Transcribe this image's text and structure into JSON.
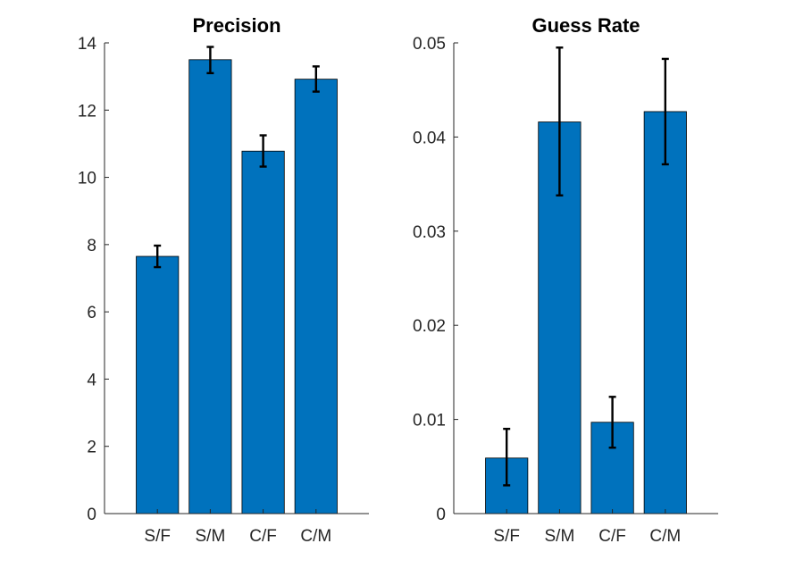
{
  "chart_data": [
    {
      "type": "bar",
      "title": "Precision",
      "categories": [
        "S/F",
        "S/M",
        "C/F",
        "C/M"
      ],
      "values": [
        7.65,
        13.5,
        10.78,
        12.92
      ],
      "error_low": [
        7.33,
        13.1,
        10.32,
        12.55
      ],
      "error_high": [
        7.97,
        13.88,
        11.25,
        13.3
      ],
      "ylim": [
        0,
        14
      ],
      "yticks": [
        0,
        2,
        4,
        6,
        8,
        10,
        12,
        14
      ],
      "ytick_labels": [
        "0",
        "2",
        "4",
        "6",
        "8",
        "10",
        "12",
        "14"
      ],
      "xlabel": "",
      "ylabel": "",
      "grid": false,
      "bar_color": "#0072BD"
    },
    {
      "type": "bar",
      "title": "Guess Rate",
      "categories": [
        "S/F",
        "S/M",
        "C/F",
        "C/M"
      ],
      "values": [
        0.0059,
        0.0416,
        0.0097,
        0.0427
      ],
      "error_low": [
        0.003,
        0.0338,
        0.007,
        0.0371
      ],
      "error_high": [
        0.009,
        0.0495,
        0.0124,
        0.0483
      ],
      "ylim": [
        0,
        0.05
      ],
      "yticks": [
        0,
        0.01,
        0.02,
        0.03,
        0.04,
        0.05
      ],
      "ytick_labels": [
        "0",
        "0.01",
        "0.02",
        "0.03",
        "0.04",
        "0.05"
      ],
      "xlabel": "",
      "ylabel": "",
      "grid": false,
      "bar_color": "#0072BD"
    }
  ]
}
